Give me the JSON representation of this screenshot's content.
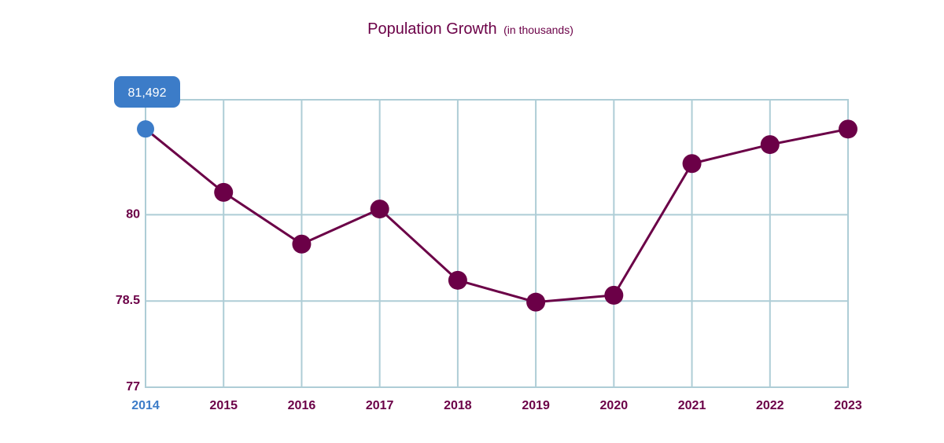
{
  "chart_data": {
    "type": "line",
    "title": "Population Growth",
    "subtitle": "(in thousands)",
    "categories": [
      "2014",
      "2015",
      "2016",
      "2017",
      "2018",
      "2019",
      "2020",
      "2021",
      "2022",
      "2023"
    ],
    "series": [
      {
        "values": [
          81.492,
          80.39,
          79.49,
          80.1,
          78.86,
          78.48,
          78.6,
          80.89,
          81.22,
          81.49
        ]
      }
    ],
    "y_ticks": [
      "77",
      "78.5",
      "80"
    ],
    "ylim": [
      77,
      82
    ],
    "grid": true,
    "tooltip": {
      "category_index": 0,
      "text": "81,492"
    },
    "colors": {
      "line": "#6b0047",
      "point": "#6b0047",
      "highlight": "#3c7cc8",
      "grid": "#aecdd6",
      "title": "#6b0047",
      "tick_text": "#6b0047",
      "tooltip_bg": "#3c7cc8",
      "tooltip_text": "#ffffff"
    }
  }
}
